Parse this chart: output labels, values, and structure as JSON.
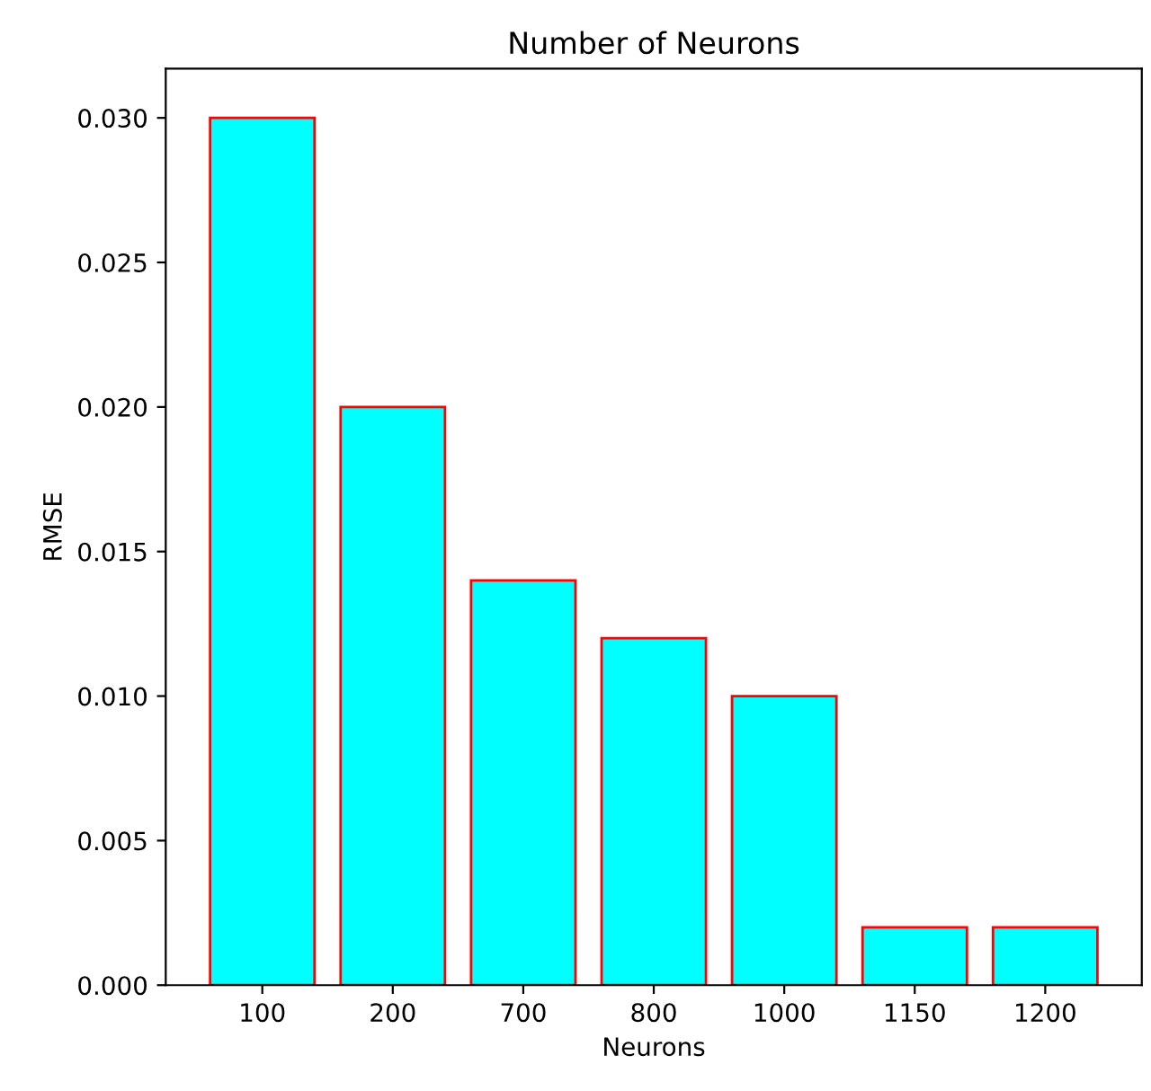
{
  "chart_data": {
    "type": "bar",
    "title": "Number of Neurons",
    "xlabel": "Neurons",
    "ylabel": "RMSE",
    "categories": [
      "100",
      "200",
      "700",
      "800",
      "1000",
      "1150",
      "1200"
    ],
    "values": [
      0.03,
      0.02,
      0.014,
      0.012,
      0.01,
      0.002,
      0.002
    ],
    "color": "#00ffff",
    "ylim": [
      0,
      0.0317
    ],
    "yticks": [
      {
        "value": 0,
        "label": "0.000"
      },
      {
        "value": 0.005,
        "label": "0.005"
      },
      {
        "value": 0.01,
        "label": "0.010"
      },
      {
        "value": 0.015,
        "label": "0.015"
      },
      {
        "value": 0.02,
        "label": "0.020"
      },
      {
        "value": 0.025,
        "label": "0.025"
      },
      {
        "value": 0.03,
        "label": "0.030"
      }
    ],
    "grid": false,
    "legend": false
  }
}
